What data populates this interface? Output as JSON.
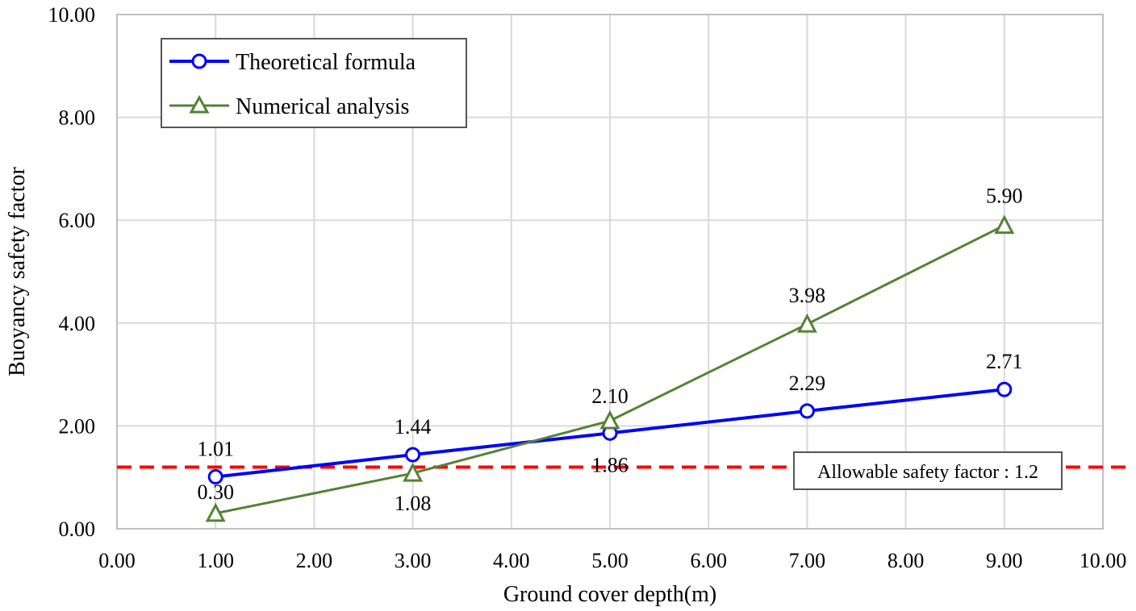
{
  "chart_data": {
    "type": "line",
    "xlabel": "Ground cover depth(m)",
    "ylabel": "Buoyancy safety factor",
    "xlim": [
      0,
      10
    ],
    "ylim": [
      0,
      10
    ],
    "x_ticks": [
      "0.00",
      "1.00",
      "2.00",
      "3.00",
      "4.00",
      "5.00",
      "6.00",
      "7.00",
      "8.00",
      "9.00",
      "10.00"
    ],
    "y_ticks": [
      "0.00",
      "2.00",
      "4.00",
      "6.00",
      "8.00",
      "10.00"
    ],
    "grid": true,
    "legend_position": "top-left",
    "series": [
      {
        "name": "Theoretical formula",
        "color": "#0000ff",
        "marker": "circle",
        "x": [
          1,
          3,
          5,
          7,
          9
        ],
        "values": [
          1.01,
          1.44,
          1.86,
          2.29,
          2.71
        ],
        "labels": [
          "1.01",
          "1.44",
          "1.86",
          "2.29",
          "2.71"
        ]
      },
      {
        "name": "Numerical analysis",
        "color": "#548235",
        "marker": "triangle",
        "x": [
          1,
          3,
          5,
          7,
          9
        ],
        "values": [
          0.3,
          1.08,
          2.1,
          3.98,
          5.9
        ],
        "labels": [
          "0.30",
          "1.08",
          "2.10",
          "3.98",
          "5.90"
        ]
      }
    ],
    "reference_line": {
      "value": 1.2,
      "color": "#ff0000",
      "label": "Allowable safety factor : 1.2"
    }
  }
}
